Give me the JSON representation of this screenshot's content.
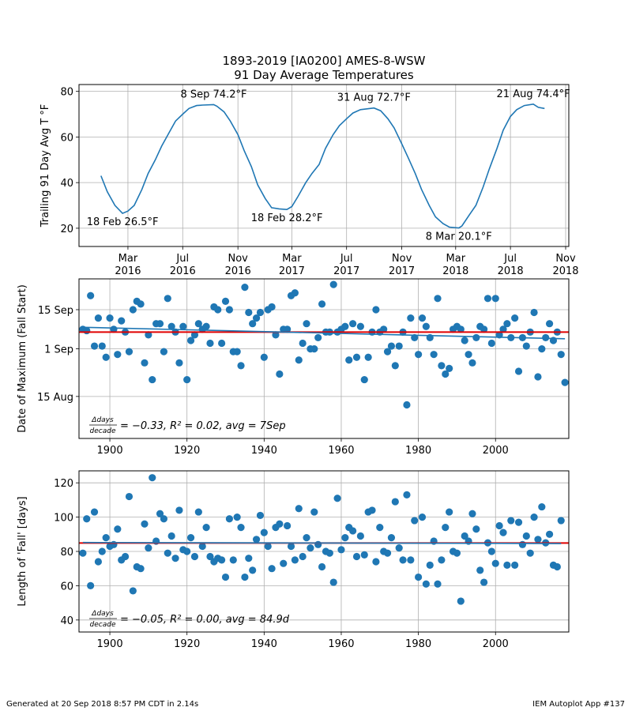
{
  "title": [
    "1893-2019 [IA0200] AMES-8-WSW",
    "91 Day Average Temperatures"
  ],
  "footer": {
    "left": "Generated at 20 Sep 2018 8:57 PM CDT in 2.14s",
    "right": "IEM Autoplot App #137"
  },
  "chart_data": [
    {
      "type": "line",
      "ylabel": "Trailing 91 Day Avg T °F",
      "color": "#1f77b4",
      "grid": true,
      "x": [
        "2016-01-01",
        "2016-01-15",
        "2016-02-01",
        "2016-02-18",
        "2016-03-01",
        "2016-03-15",
        "2016-04-01",
        "2016-04-15",
        "2016-05-01",
        "2016-05-15",
        "2016-06-01",
        "2016-06-15",
        "2016-07-01",
        "2016-07-15",
        "2016-08-01",
        "2016-08-15",
        "2016-09-08",
        "2016-09-15",
        "2016-10-01",
        "2016-10-15",
        "2016-11-01",
        "2016-11-15",
        "2016-12-01",
        "2016-12-15",
        "2017-01-01",
        "2017-01-15",
        "2017-02-01",
        "2017-02-18",
        "2017-03-01",
        "2017-03-15",
        "2017-04-01",
        "2017-04-15",
        "2017-05-01",
        "2017-05-15",
        "2017-06-01",
        "2017-06-15",
        "2017-07-01",
        "2017-07-15",
        "2017-08-01",
        "2017-08-31",
        "2017-09-15",
        "2017-10-01",
        "2017-10-15",
        "2017-11-01",
        "2017-11-15",
        "2017-12-01",
        "2017-12-15",
        "2018-01-01",
        "2018-01-15",
        "2018-02-01",
        "2018-02-15",
        "2018-03-08",
        "2018-03-15",
        "2018-04-01",
        "2018-04-15",
        "2018-05-01",
        "2018-05-15",
        "2018-06-01",
        "2018-06-15",
        "2018-07-01",
        "2018-07-15",
        "2018-08-01",
        "2018-08-21",
        "2018-09-01",
        "2018-09-15"
      ],
      "values": [
        43,
        36,
        30,
        26.5,
        27.5,
        30,
        37,
        44,
        50,
        56,
        62,
        67,
        70,
        72.5,
        73.8,
        74,
        74.2,
        73.5,
        71,
        67,
        61,
        54,
        47,
        39,
        33,
        29,
        28.5,
        28.2,
        29.5,
        34,
        40,
        44,
        48,
        55,
        61,
        65,
        68,
        70.5,
        72,
        72.7,
        71.5,
        68,
        64,
        57,
        51,
        44,
        37,
        30,
        25,
        22,
        20.5,
        20.1,
        21,
        26,
        30,
        38,
        46,
        55,
        63,
        69,
        72,
        73.8,
        74.4,
        73,
        72.5
      ],
      "xlim": [
        "2015-11-13",
        "2018-11-08"
      ],
      "ylim": [
        12,
        83
      ],
      "yticks": [
        20,
        40,
        60,
        80
      ],
      "xticks": [
        {
          "value": "2016-03-01",
          "label": "Mar\n2016"
        },
        {
          "value": "2016-07-01",
          "label": "Jul\n2016"
        },
        {
          "value": "2016-11-01",
          "label": "Nov\n2016"
        },
        {
          "value": "2017-03-01",
          "label": "Mar\n2017"
        },
        {
          "value": "2017-07-01",
          "label": "Jul\n2017"
        },
        {
          "value": "2017-11-01",
          "label": "Nov\n2017"
        },
        {
          "value": "2018-03-01",
          "label": "Mar\n2018"
        },
        {
          "value": "2018-07-01",
          "label": "Jul\n2018"
        },
        {
          "value": "2018-11-01",
          "label": "Nov\n2018"
        }
      ],
      "annotations": [
        {
          "text": "18 Feb 26.5°F",
          "x": "2016-02-18",
          "y": 26.5
        },
        {
          "text": "8 Sep 74.2°F",
          "x": "2016-09-08",
          "y": 74.2
        },
        {
          "text": "18 Feb 28.2°F",
          "x": "2017-02-18",
          "y": 28.2
        },
        {
          "text": "31 Aug 72.7°F",
          "x": "2017-08-31",
          "y": 72.7
        },
        {
          "text": "8 Mar 20.1°F",
          "x": "2018-03-08",
          "y": 20.1
        },
        {
          "text": "21 Aug 74.4°F",
          "x": "2018-08-21",
          "y": 74.4
        }
      ]
    },
    {
      "type": "scatter",
      "ylabel": "Date of Maximum (Fall Start)",
      "color": "#1f77b4",
      "grid": true,
      "x": [
        1893,
        1894,
        1895,
        1896,
        1897,
        1898,
        1899,
        1900,
        1901,
        1902,
        1903,
        1904,
        1905,
        1906,
        1907,
        1908,
        1909,
        1910,
        1911,
        1912,
        1913,
        1914,
        1915,
        1916,
        1917,
        1918,
        1919,
        1920,
        1921,
        1922,
        1923,
        1924,
        1925,
        1926,
        1927,
        1928,
        1929,
        1930,
        1931,
        1932,
        1933,
        1934,
        1935,
        1936,
        1937,
        1938,
        1939,
        1940,
        1941,
        1942,
        1943,
        1944,
        1945,
        1946,
        1947,
        1948,
        1949,
        1950,
        1951,
        1952,
        1953,
        1954,
        1955,
        1956,
        1957,
        1958,
        1959,
        1960,
        1961,
        1962,
        1963,
        1964,
        1965,
        1966,
        1967,
        1968,
        1969,
        1970,
        1971,
        1972,
        1973,
        1974,
        1975,
        1976,
        1977,
        1978,
        1979,
        1980,
        1981,
        1982,
        1983,
        1984,
        1985,
        1986,
        1987,
        1988,
        1989,
        1990,
        1991,
        1992,
        1993,
        1994,
        1995,
        1996,
        1997,
        1998,
        1999,
        2000,
        2001,
        2002,
        2003,
        2004,
        2005,
        2006,
        2007,
        2008,
        2009,
        2010,
        2011,
        2012,
        2013,
        2014,
        2015,
        2016,
        2017,
        2018
      ],
      "values": [
        251,
        250.5,
        263,
        245,
        255,
        245,
        241,
        255,
        251,
        242,
        254,
        250,
        243,
        258,
        261,
        260,
        239,
        249,
        233,
        253,
        253,
        243,
        262,
        252,
        250,
        239,
        252,
        233,
        247,
        249,
        253,
        251,
        252,
        246,
        259,
        258,
        246,
        261,
        258,
        243,
        243,
        238,
        266,
        257,
        253,
        255,
        257,
        241,
        258,
        259,
        249,
        235,
        251,
        251,
        263,
        264,
        240,
        246,
        253,
        244,
        244,
        248,
        260,
        250,
        250,
        267,
        250,
        251,
        252,
        240,
        253,
        241,
        252,
        233,
        241,
        250,
        258,
        250,
        251,
        243,
        245,
        238,
        245,
        250,
        224,
        255,
        248,
        242,
        255,
        252,
        248,
        242,
        262,
        238,
        235,
        237,
        251,
        252,
        251,
        247,
        242,
        239,
        248,
        252,
        251,
        262,
        246,
        262,
        249,
        251,
        253,
        248,
        255,
        236,
        248,
        245,
        250,
        257,
        234,
        244,
        248,
        253,
        247,
        250,
        242,
        232
      ],
      "xlim": [
        1892,
        2019
      ],
      "ylim": [
        212,
        269
      ],
      "xticks": [
        1900,
        1920,
        1940,
        1960,
        1980,
        2000
      ],
      "yticks": [
        {
          "value": 227,
          "label": "15 Aug"
        },
        {
          "value": 244,
          "label": "1 Sep"
        },
        {
          "value": 258,
          "label": "15 Sep"
        }
      ],
      "average": 250,
      "average_color": "#e00000",
      "trend": {
        "x": [
          1893,
          2018
        ],
        "values": [
          251.7,
          247.6
        ],
        "color": "#1f77b4"
      },
      "stat_label": {
        "numerator": "Δdays",
        "denominator": "decade",
        "text": "= −0.33, R² = 0.02, avg = 7Sep"
      }
    },
    {
      "type": "scatter",
      "ylabel": "Length of 'Fall' [days]",
      "color": "#1f77b4",
      "grid": true,
      "x": [
        1893,
        1894,
        1895,
        1896,
        1897,
        1898,
        1899,
        1900,
        1901,
        1902,
        1903,
        1904,
        1905,
        1906,
        1907,
        1908,
        1909,
        1910,
        1911,
        1912,
        1913,
        1914,
        1915,
        1916,
        1917,
        1918,
        1919,
        1920,
        1921,
        1922,
        1923,
        1924,
        1925,
        1926,
        1927,
        1928,
        1929,
        1930,
        1931,
        1932,
        1933,
        1934,
        1935,
        1936,
        1937,
        1938,
        1939,
        1940,
        1941,
        1942,
        1943,
        1944,
        1945,
        1946,
        1947,
        1948,
        1949,
        1950,
        1951,
        1952,
        1953,
        1954,
        1955,
        1956,
        1957,
        1958,
        1959,
        1960,
        1961,
        1962,
        1963,
        1964,
        1965,
        1966,
        1967,
        1968,
        1969,
        1970,
        1971,
        1972,
        1973,
        1974,
        1975,
        1976,
        1977,
        1978,
        1979,
        1980,
        1981,
        1982,
        1983,
        1984,
        1985,
        1986,
        1987,
        1988,
        1989,
        1990,
        1991,
        1992,
        1993,
        1994,
        1995,
        1996,
        1997,
        1998,
        1999,
        2000,
        2001,
        2002,
        2003,
        2004,
        2005,
        2006,
        2007,
        2008,
        2009,
        2010,
        2011,
        2012,
        2013,
        2014,
        2015,
        2016,
        2017
      ],
      "values": [
        79,
        99,
        60,
        103,
        74,
        80,
        88,
        83,
        84,
        93,
        75,
        77,
        112,
        57,
        71,
        70,
        96,
        82,
        123,
        86,
        102,
        99,
        79,
        89,
        76,
        104,
        81,
        80,
        88,
        77,
        103,
        83,
        94,
        77,
        74,
        76,
        75,
        65,
        99,
        75,
        100,
        94,
        65,
        76,
        69,
        87,
        101,
        91,
        83,
        70,
        94,
        96,
        73,
        95,
        83,
        75,
        105,
        77,
        88,
        82,
        103,
        84,
        71,
        80,
        79,
        62,
        111,
        81,
        88,
        94,
        92,
        77,
        89,
        78,
        103,
        104,
        74,
        94,
        80,
        79,
        88,
        109,
        82,
        75,
        113,
        75,
        98,
        65,
        100,
        61,
        72,
        86,
        61,
        75,
        94,
        103,
        80,
        79,
        51,
        89,
        86,
        102,
        93,
        69,
        62,
        85,
        80,
        73,
        95,
        91,
        72,
        98,
        72,
        97,
        84,
        89,
        79,
        100,
        87,
        106,
        85,
        90,
        72,
        71,
        98
      ],
      "xlim": [
        1892,
        2019
      ],
      "ylim": [
        33,
        127
      ],
      "xticks": [
        1900,
        1920,
        1940,
        1960,
        1980,
        2000
      ],
      "yticks": [
        40,
        60,
        80,
        100,
        120
      ],
      "average": 84.9,
      "average_color": "#e00000",
      "trend": {
        "x": [
          1893,
          2017
        ],
        "values": [
          85.2,
          84.6
        ],
        "color": "#1f77b4"
      },
      "stat_label": {
        "numerator": "Δdays",
        "denominator": "decade",
        "text": "= −0.05, R² = 0.00, avg = 84.9d"
      }
    }
  ]
}
